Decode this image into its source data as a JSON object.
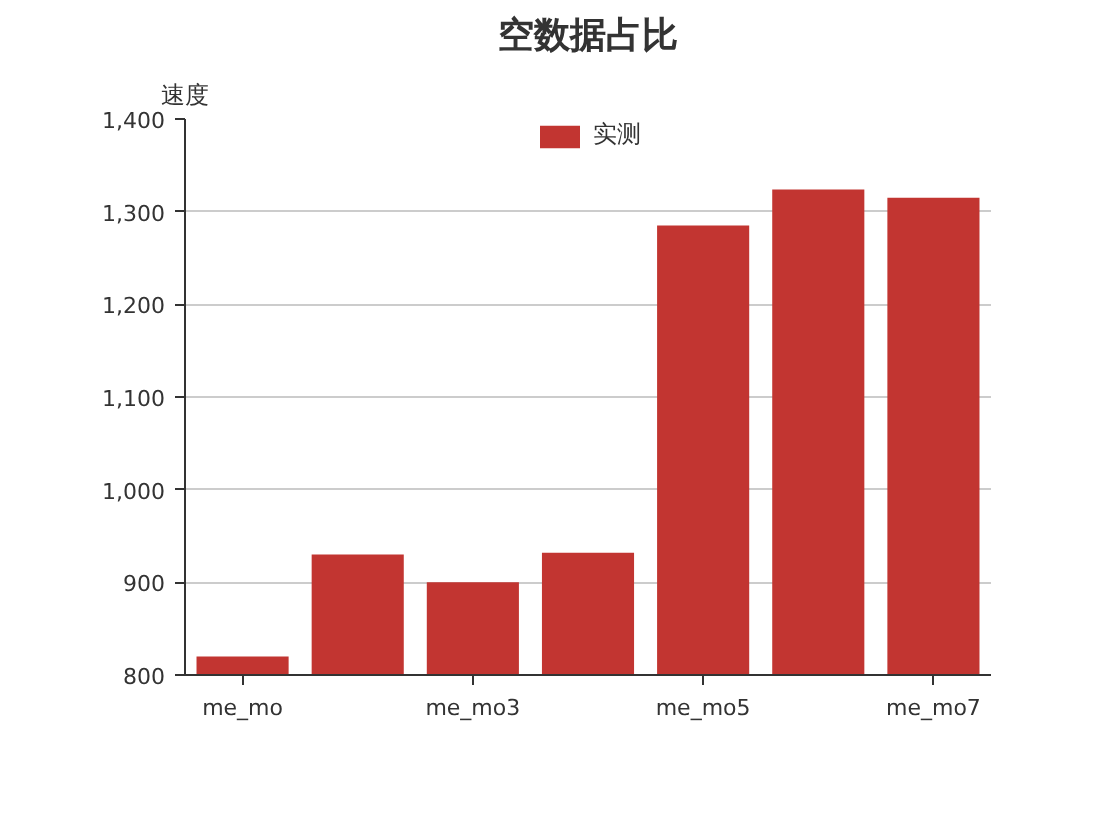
{
  "chart_data": {
    "type": "bar",
    "title": "空数据占比",
    "ylabel": "速度",
    "categories": [
      "me_mo",
      null,
      "me_mo3",
      null,
      "me_mo5",
      null,
      "me_mo7"
    ],
    "series": [
      {
        "name": "实测",
        "color": "#c23531",
        "values": [
          820,
          930,
          900,
          932,
          1285,
          1324,
          1315
        ]
      }
    ],
    "ylim": [
      800,
      1400
    ],
    "yticks": [
      800,
      900,
      {
        "value": 1000,
        "label": "1,000"
      },
      {
        "value": 1100,
        "label": "1,100"
      },
      {
        "value": 1200,
        "label": "1,200"
      },
      {
        "value": 1300,
        "label": "1,300"
      },
      {
        "value": 1400,
        "label": "1,400"
      }
    ],
    "grid": "y",
    "legend": "top"
  }
}
